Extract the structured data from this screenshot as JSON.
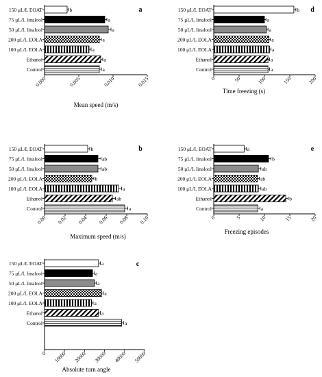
{
  "categories": [
    "150 μL/L EOAT",
    "75 μL/L linalool",
    "50 μL/L linalool",
    "200 μL/L EOLA",
    "100 μL/L EOLA",
    "Ethanol",
    "Control"
  ],
  "bar_styles": [
    "white",
    "black",
    "gray",
    "checker",
    "vertical",
    "diagonal",
    "horizontal"
  ],
  "colors": {
    "black": "#000000",
    "gray": "#8c8c8c",
    "white": "#ffffff"
  },
  "chart_data": [
    {
      "type": "bar",
      "orientation": "horizontal",
      "panel_letter": "a",
      "xlabel": "Mean speed (m/s)",
      "xlim": [
        0,
        0.015
      ],
      "ticks": [
        0,
        0.005,
        0.01,
        0.015
      ],
      "tick_labels": [
        "0.000",
        "0.005",
        "0.010",
        "0.015"
      ],
      "values": [
        0.0033,
        0.0088,
        0.0093,
        0.008,
        0.0065,
        0.0082,
        0.008
      ],
      "errors": [
        0.0002,
        0.0003,
        0.0004,
        0.0003,
        0.0003,
        0.0003,
        0.0003
      ],
      "letters": [
        "b",
        "a",
        "a",
        "a",
        "a",
        "a",
        "a"
      ]
    },
    {
      "type": "bar",
      "orientation": "horizontal",
      "panel_letter": "d",
      "xlabel": "Time freezing (s)",
      "xlim": [
        0,
        200
      ],
      "ticks": [
        0,
        50,
        100,
        150,
        200
      ],
      "tick_labels": [
        "0",
        "50",
        "100",
        "150",
        "200"
      ],
      "values": [
        158,
        100,
        104,
        109,
        110,
        107,
        107
      ],
      "errors": [
        4,
        3,
        3,
        3,
        3,
        3,
        3
      ],
      "letters": [
        "b",
        "a",
        "a",
        "a",
        "a",
        "a",
        "a"
      ]
    },
    {
      "type": "bar",
      "orientation": "horizontal",
      "panel_letter": "b",
      "xlabel": "Maximum speed (m/s)",
      "xlim": [
        0,
        0.1
      ],
      "ticks": [
        0,
        0.02,
        0.04,
        0.06,
        0.08,
        0.1
      ],
      "tick_labels": [
        "0.00",
        "0.02",
        "0.04",
        "0.06",
        "0.08",
        "0.10"
      ],
      "values": [
        0.042,
        0.052,
        0.052,
        0.046,
        0.072,
        0.066,
        0.078
      ],
      "errors": [
        0.002,
        0.003,
        0.003,
        0.002,
        0.003,
        0.003,
        0.003
      ],
      "letters": [
        "b",
        "ab",
        "ab",
        "b",
        "a",
        "ab",
        "a"
      ]
    },
    {
      "type": "bar",
      "orientation": "horizontal",
      "panel_letter": "e",
      "xlabel": "Freezing episodes",
      "xlim": [
        0,
        20
      ],
      "ticks": [
        0,
        5,
        10,
        15,
        20
      ],
      "tick_labels": [
        "0",
        "5",
        "10",
        "15",
        "20"
      ],
      "values": [
        6,
        10.8,
        8.8,
        8.6,
        8.8,
        14.2,
        8.7
      ],
      "errors": [
        0.4,
        0.5,
        0.5,
        0.4,
        0.5,
        0.5,
        0.4
      ],
      "letters": [
        "a",
        "b",
        "ab",
        "ab",
        "ab",
        "b",
        "a"
      ]
    },
    {
      "type": "bar",
      "orientation": "horizontal",
      "panel_letter": "c",
      "xlabel": "Absolute turn angle",
      "xlim": [
        0,
        50000
      ],
      "ticks": [
        0,
        10000,
        20000,
        30000,
        40000,
        50000
      ],
      "tick_labels": [
        "0",
        "10000",
        "20000",
        "30000",
        "40000",
        "50000"
      ],
      "values": [
        27000,
        24000,
        25000,
        28500,
        23500,
        27000,
        38500
      ],
      "errors": [
        900,
        800,
        900,
        900,
        800,
        900,
        1000
      ],
      "letters": [
        "a",
        "a",
        "a",
        "a",
        "a",
        "a",
        "a"
      ]
    }
  ]
}
